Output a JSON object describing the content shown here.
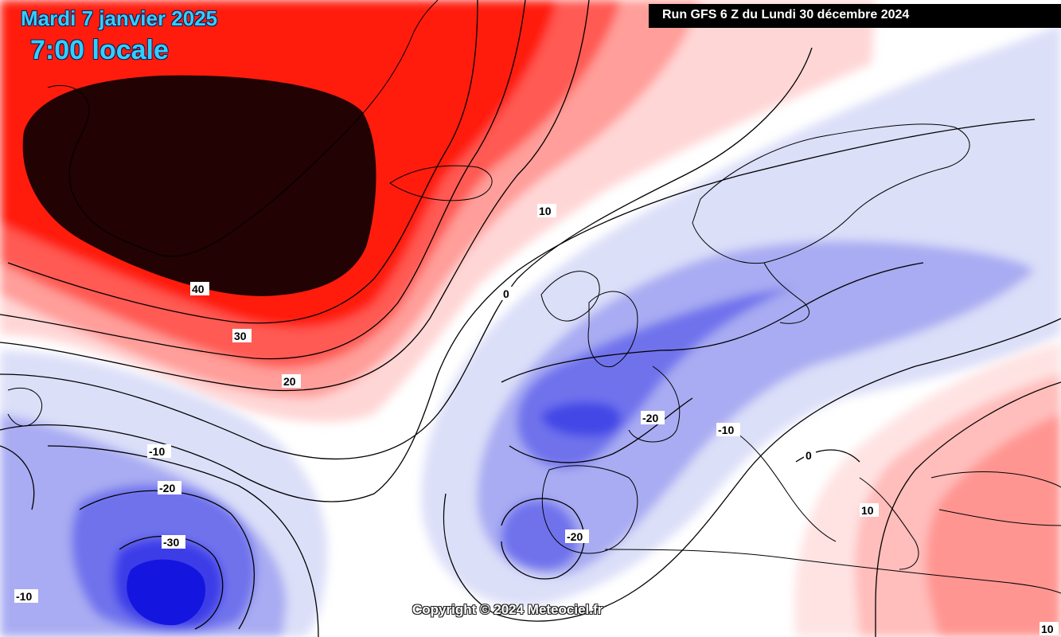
{
  "header": {
    "date_title": "Mardi 7 janvier 2025",
    "time_title": "7:00 locale",
    "run_banner": "Run GFS 6 Z du Lundi 30 décembre 2024"
  },
  "footer": {
    "copyright": "Copyright © 2024 Meteociel.fr"
  },
  "contour_labels": [
    "40",
    "30",
    "20",
    "10",
    "0",
    "-10",
    "-20",
    "-30",
    "-20",
    "-10",
    "-20",
    "0",
    "10",
    "-10",
    "10"
  ],
  "colors": {
    "warm_extreme": "#200000",
    "warm_strong": "#ff1a10",
    "warm_mid": "#ff6f6a",
    "warm_light": "#ffd2d2",
    "neutral": "#ffffff",
    "cold_light": "#d9dcf7",
    "cold_mid": "#8a8df0",
    "cold_strong": "#3d3ee8",
    "cold_core": "#1515e0",
    "title_text": "#2fd0ff"
  }
}
